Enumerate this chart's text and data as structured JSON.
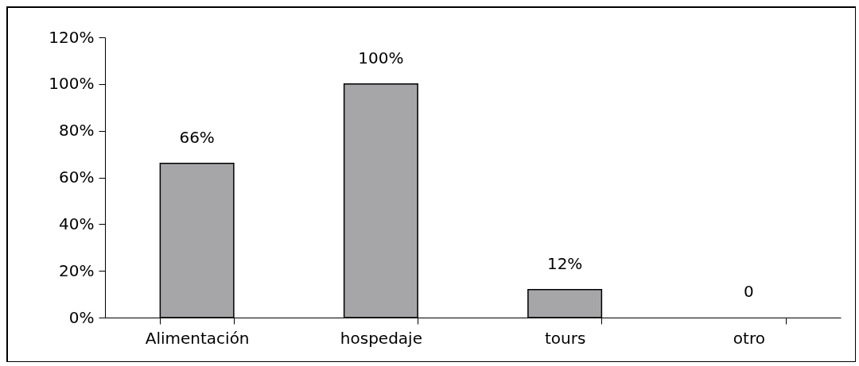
{
  "chart_data": {
    "type": "bar",
    "categories": [
      "Alimentación",
      "hospedaje",
      "tours",
      "otro"
    ],
    "values": [
      66,
      100,
      12,
      0
    ],
    "color": "#a6a6a9",
    "value_labels": [
      "66%",
      "100%",
      "12%",
      "0"
    ],
    "ylim": [
      0,
      120
    ],
    "yticks": [
      {
        "value": 0,
        "label": "0%"
      },
      {
        "value": 20,
        "label": "20%"
      },
      {
        "value": 40,
        "label": "40%"
      },
      {
        "value": 60,
        "label": "60%"
      },
      {
        "value": 80,
        "label": "80%"
      },
      {
        "value": 100,
        "label": "100%"
      },
      {
        "value": 120,
        "label": "120%"
      }
    ],
    "grid": false
  }
}
